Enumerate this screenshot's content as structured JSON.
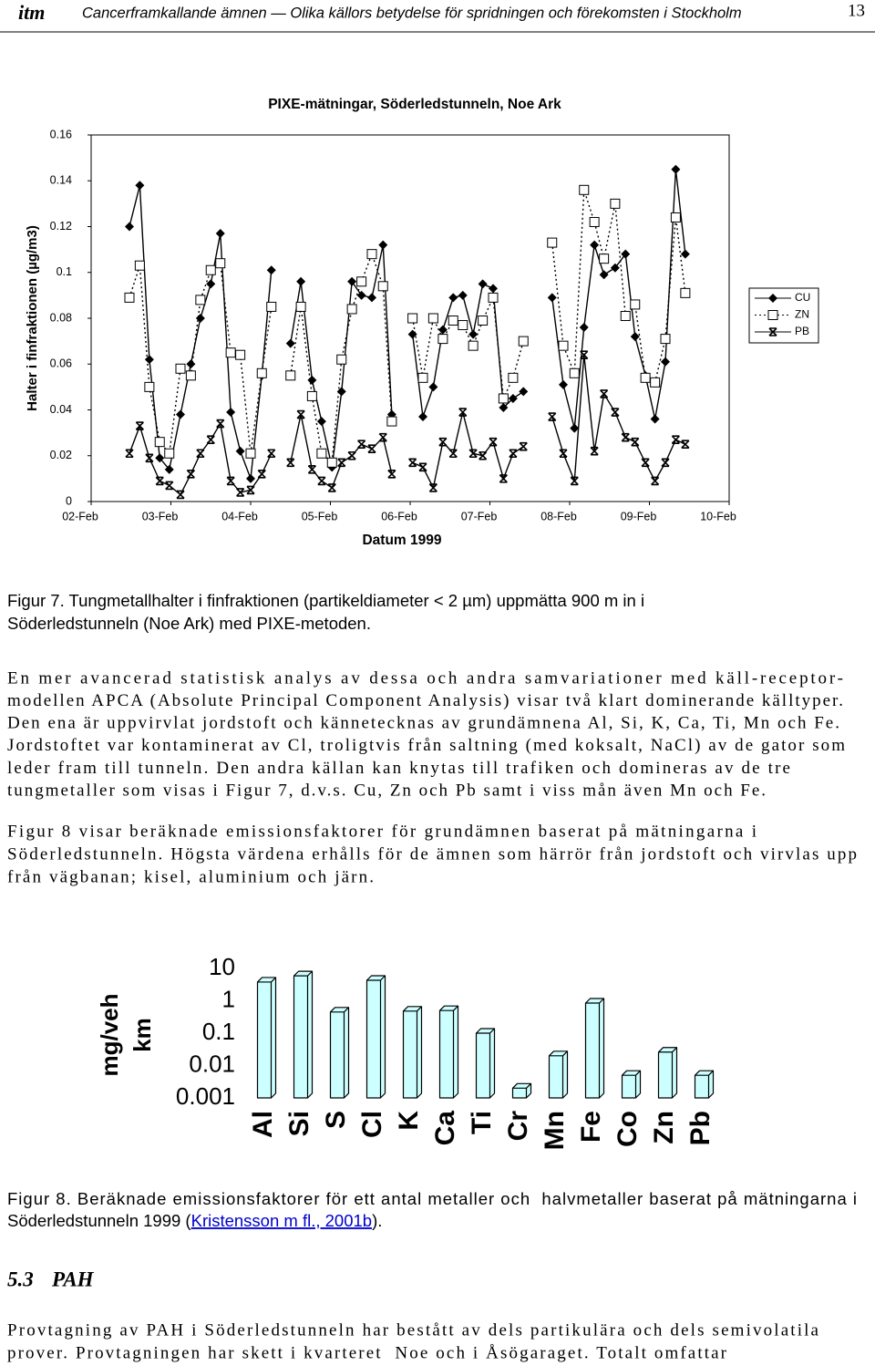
{
  "header": {
    "logo": "itm",
    "title": "Cancerframkallande ämnen — Olika källors betydelse för spridningen och förekomsten i Stockholm",
    "page_number": "13"
  },
  "chart_data": [
    {
      "type": "line",
      "title": "PIXE-mätningar, Söderledstunneln, Noe Ark",
      "xlabel": "Datum 1999",
      "ylabel": "Halter i finfraktionen (µg/m3)",
      "x": [
        2.48,
        2.61,
        2.73,
        2.86,
        2.98,
        3.12,
        3.25,
        3.37,
        3.5,
        3.62,
        3.75,
        3.87,
        4.0,
        4.14,
        4.26,
        4.5,
        4.63,
        4.77,
        4.89,
        5.02,
        5.14,
        5.27,
        5.39,
        5.52,
        5.66,
        5.77,
        6.03,
        6.16,
        6.29,
        6.41,
        6.54,
        6.66,
        6.79,
        6.91,
        7.04,
        7.17,
        7.29,
        7.42,
        7.78,
        7.92,
        8.06,
        8.18,
        8.31,
        8.43,
        8.57,
        8.7,
        8.82,
        8.95,
        9.07,
        9.2,
        9.33,
        9.45
      ],
      "xlim": [
        2,
        10
      ],
      "xticks": [
        {
          "value": 2,
          "label": "02-Feb"
        },
        {
          "value": 3,
          "label": "03-Feb"
        },
        {
          "value": 4,
          "label": "04-Feb"
        },
        {
          "value": 5,
          "label": "05-Feb"
        },
        {
          "value": 6,
          "label": "06-Feb"
        },
        {
          "value": 7,
          "label": "07-Feb"
        },
        {
          "value": 8,
          "label": "08-Feb"
        },
        {
          "value": 9,
          "label": "09-Feb"
        },
        {
          "value": 10,
          "label": "10-Feb"
        }
      ],
      "ylim": [
        0,
        0.16
      ],
      "yticks": [
        0,
        0.02,
        0.04,
        0.06,
        0.08,
        0.1,
        0.12,
        0.14,
        0.16
      ],
      "legend": "right",
      "series": [
        {
          "name": "CU",
          "color": "#000000",
          "marker": "diamond",
          "line": "solid",
          "values": [
            0.12,
            0.138,
            0.062,
            0.019,
            0.014,
            0.038,
            0.06,
            0.08,
            0.095,
            0.117,
            0.039,
            0.022,
            0.01,
            0.055,
            0.101,
            0.069,
            0.096,
            0.053,
            0.035,
            0.015,
            0.048,
            0.096,
            0.09,
            0.089,
            0.112,
            0.038,
            0.073,
            0.037,
            0.05,
            0.075,
            0.089,
            0.09,
            0.073,
            0.095,
            0.093,
            0.041,
            0.045,
            0.048,
            0.089,
            0.051,
            0.032,
            0.076,
            0.112,
            0.099,
            0.102,
            0.108,
            0.072,
            0.055,
            0.036,
            0.061,
            0.145,
            0.108
          ]
        },
        {
          "name": "ZN",
          "color": "#000000",
          "marker": "square",
          "line": "dotted",
          "values": [
            0.089,
            0.103,
            0.05,
            0.026,
            0.021,
            0.058,
            0.055,
            0.088,
            0.101,
            0.104,
            0.065,
            0.064,
            0.021,
            0.056,
            0.085,
            0.055,
            0.085,
            0.046,
            0.021,
            0.017,
            0.062,
            0.084,
            0.096,
            0.108,
            0.094,
            0.035,
            0.08,
            0.054,
            0.08,
            0.071,
            0.079,
            0.077,
            0.068,
            0.079,
            0.089,
            0.045,
            0.054,
            0.07,
            0.113,
            0.068,
            0.056,
            0.136,
            0.122,
            0.106,
            0.13,
            0.081,
            0.086,
            0.054,
            0.052,
            0.071,
            0.124,
            0.091
          ]
        },
        {
          "name": "PB",
          "color": "#000000",
          "marker": "star",
          "line": "solid",
          "values": [
            0.021,
            0.033,
            0.019,
            0.009,
            0.007,
            0.003,
            0.012,
            0.021,
            0.027,
            0.034,
            0.009,
            0.004,
            0.005,
            0.012,
            0.021,
            0.017,
            0.038,
            0.014,
            0.009,
            0.006,
            0.017,
            0.02,
            0.025,
            0.023,
            0.028,
            0.012,
            0.017,
            0.015,
            0.006,
            0.026,
            0.021,
            0.039,
            0.021,
            0.02,
            0.026,
            0.01,
            0.021,
            0.024,
            0.037,
            0.021,
            0.009,
            0.064,
            0.022,
            0.047,
            0.039,
            0.028,
            0.026,
            0.017,
            0.009,
            0.017,
            0.027,
            0.025
          ]
        }
      ]
    },
    {
      "type": "bar",
      "ylabel": [
        "mg/veh",
        "km"
      ],
      "categories": [
        "Al",
        "Si",
        "S",
        "Cl",
        "K",
        "Ca",
        "Ti",
        "Cr",
        "Mn",
        "Fe",
        "Co",
        "Zn",
        "Pb"
      ],
      "values": [
        3.8,
        5.9,
        0.45,
        4.3,
        0.48,
        0.5,
        0.1,
        0.002,
        0.02,
        0.85,
        0.005,
        0.026,
        0.005
      ],
      "color": "#ccffff",
      "log_y": true,
      "ylim": [
        0.001,
        10
      ],
      "yticks": [
        0.001,
        0.01,
        0.1,
        1,
        10
      ]
    }
  ],
  "figure7_caption": [
    "Figur 7. Tungmetallhalter i finfraktionen (partikeldiameter < 2 µm) uppmätta 900 m in i",
    "Söderledstunneln (Noe Ark) med PIXE-metoden."
  ],
  "paragraphs": [
    [
      "En mer avancerad statistisk analys av dessa och andra samvariationer med käll-receptor-",
      "modellen APCA (Absolute Principal Component Analysis) visar två klart dominerande källtyper.",
      "Den ena är uppvirvlat jordstoft och kännetecknas av grundämnena Al, Si, K, Ca, Ti, Mn och Fe.",
      "Jordstoftet var kontaminerat av Cl, troligtvis från saltning (med koksalt, NaCl) av de gator som",
      "leder fram till tunneln. Den andra källan kan knytas till trafiken och domineras av de tre",
      "tungmetaller som visas i Figur 7, d.v.s. Cu, Zn och Pb samt i viss mån även Mn och Fe."
    ],
    [
      "Figur 8 visar beräknade emissionsfaktorer för grundämnen baserat på mätningarna i",
      "Söderledstunneln. Högsta värdena erhålls för de ämnen som härrör från jordstoft och virvlas upp",
      "från vägbanan; kisel, aluminium och järn."
    ]
  ],
  "figure8_caption": {
    "line1": "Figur 8. Beräknade emissionsfaktorer för ett antal metaller och  halvmetaller baserat på mätningarna i",
    "line2_before": "Söderledstunneln 1999 (",
    "link": "Kristensson m fl., 2001b",
    "line2_after": ")."
  },
  "section": {
    "number": "5.3",
    "title": "PAH",
    "paragraph": [
      "Provtagning av PAH i Söderledstunneln har bestått av dels partikulära och dels semivolatila",
      "prover. Provtagningen har skett i kvarteret  Noe och i Åsögaraget. Totalt omfattar"
    ]
  }
}
